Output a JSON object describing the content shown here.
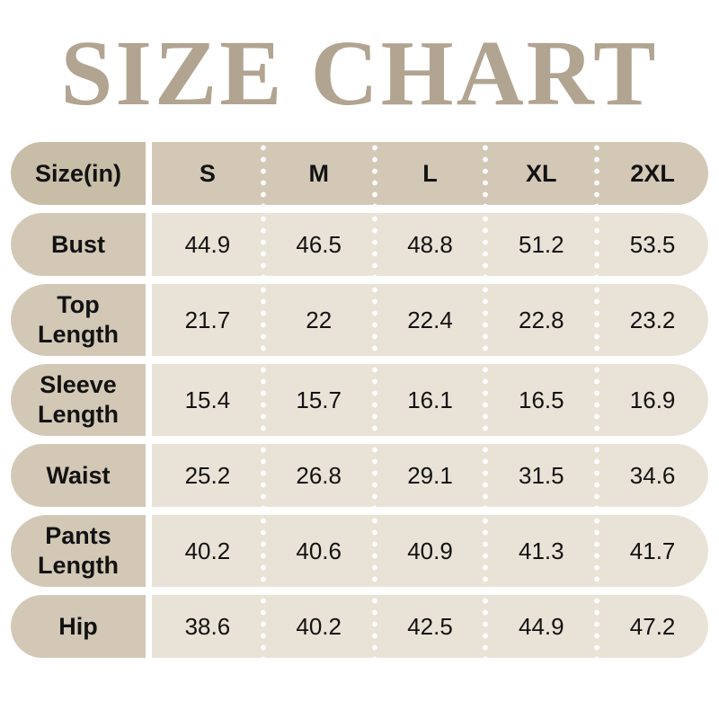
{
  "title": "SIZE CHART",
  "colors": {
    "title_text": "#b1a491",
    "header_label_bg": "#c8bda7",
    "header_row_bg": "#d3c8b6",
    "row_label_bg": "#d3c8b6",
    "row_data_bg": "#e9e3d7",
    "cell_text": "#121212",
    "page_bg": "#ffffff",
    "dot_separator": "#ffffff"
  },
  "chart_data": {
    "type": "table",
    "title": "SIZE CHART",
    "unit_label": "Size(in)",
    "columns": [
      "S",
      "M",
      "L",
      "XL",
      "2XL"
    ],
    "rows": [
      {
        "label": "Bust",
        "values": [
          "44.9",
          "46.5",
          "48.8",
          "51.2",
          "53.5"
        ]
      },
      {
        "label": "Top Length",
        "values": [
          "21.7",
          "22",
          "22.4",
          "22.8",
          "23.2"
        ]
      },
      {
        "label": "Sleeve Length",
        "values": [
          "15.4",
          "15.7",
          "16.1",
          "16.5",
          "16.9"
        ]
      },
      {
        "label": "Waist",
        "values": [
          "25.2",
          "26.8",
          "29.1",
          "31.5",
          "34.6"
        ]
      },
      {
        "label": "Pants Length",
        "values": [
          "40.2",
          "40.6",
          "40.9",
          "41.3",
          "41.7"
        ]
      },
      {
        "label": "Hip",
        "values": [
          "38.6",
          "40.2",
          "42.5",
          "44.9",
          "47.2"
        ]
      }
    ]
  }
}
